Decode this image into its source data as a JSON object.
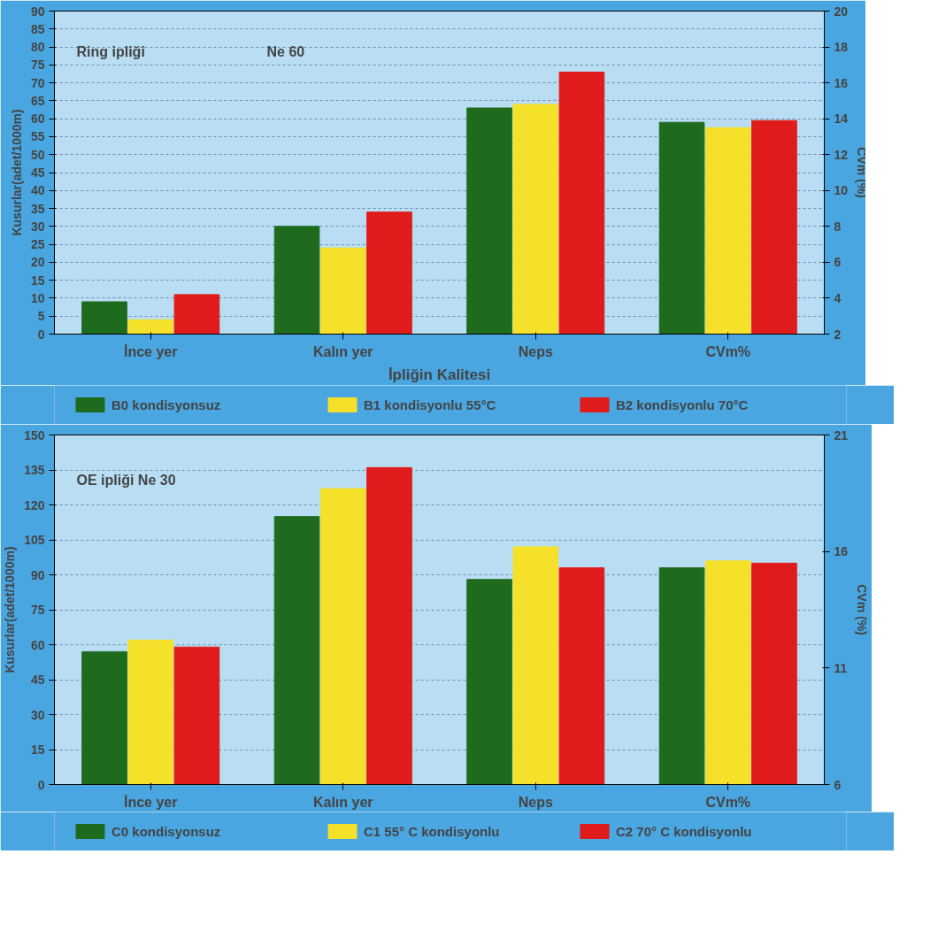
{
  "chart_data": [
    {
      "type": "bar",
      "categories": [
        "İnce yer",
        "Kalın yer",
        "Neps",
        "CVm%"
      ],
      "xlabel": "İpliğin Kalitesi",
      "ylabel": "Kusurlar(adet/1000m)",
      "y2label": "CVm (%)",
      "annotations": [
        "Ring ipliği",
        "Ne 60"
      ],
      "ylim": [
        0,
        90
      ],
      "yticks": [
        0,
        5,
        10,
        15,
        20,
        25,
        30,
        35,
        40,
        45,
        50,
        55,
        60,
        65,
        70,
        75,
        80,
        85,
        90
      ],
      "y2lim": [
        2,
        20
      ],
      "y2ticks": [
        2,
        4,
        6,
        8,
        10,
        12,
        14,
        16,
        18,
        20
      ],
      "grid": "y",
      "legend": "bottom",
      "series": [
        {
          "name": "B0 kondisyonsuz",
          "color": "#1e6b1e",
          "values": [
            9,
            30,
            63,
            null
          ]
        },
        {
          "name": "B1 kondisyonlu 55°C",
          "color": "#f5e02a",
          "values": [
            4,
            24,
            64,
            null
          ]
        },
        {
          "name": "B2 kondisyonlu 70°C",
          "color": "#e01b1b",
          "values": [
            11,
            34,
            73,
            null
          ]
        },
        {
          "color": "#1e6b1e",
          "axis": "y2",
          "values": [
            null,
            null,
            null,
            13.8
          ]
        },
        {
          "color": "#f5e02a",
          "axis": "y2",
          "values": [
            null,
            null,
            null,
            13.5
          ]
        },
        {
          "color": "#e01b1b",
          "axis": "y2",
          "values": [
            null,
            null,
            null,
            13.9
          ]
        }
      ]
    },
    {
      "type": "bar",
      "categories": [
        "İnce yer",
        "Kalın yer",
        "Neps",
        "CVm%"
      ],
      "ylabel": "Kusurlar(adet/1000m)",
      "y2label": "CVm (%)",
      "annotations": [
        "OE ipliği Ne 30"
      ],
      "ylim": [
        0,
        150
      ],
      "yticks": [
        0,
        15,
        30,
        45,
        60,
        75,
        90,
        105,
        120,
        135,
        150
      ],
      "y2lim": [
        6,
        21
      ],
      "y2ticks": [
        6,
        11,
        16,
        21
      ],
      "grid": "y",
      "legend": "bottom",
      "series": [
        {
          "name": "C0 kondisyonsuz",
          "color": "#1e6b1e",
          "values": [
            57,
            115,
            88,
            null
          ]
        },
        {
          "name": "C1 55° C kondisyonlu",
          "color": "#f5e02a",
          "values": [
            62,
            127,
            102,
            null
          ]
        },
        {
          "name": "C2 70° C kondisyonlu",
          "color": "#e01b1b",
          "values": [
            59,
            136,
            93,
            null
          ]
        },
        {
          "color": "#1e6b1e",
          "axis": "y2",
          "values": [
            null,
            null,
            null,
            15.3
          ]
        },
        {
          "color": "#f5e02a",
          "axis": "y2",
          "values": [
            null,
            null,
            null,
            15.6
          ]
        },
        {
          "color": "#e01b1b",
          "axis": "y2",
          "values": [
            null,
            null,
            null,
            15.5
          ]
        }
      ]
    }
  ]
}
